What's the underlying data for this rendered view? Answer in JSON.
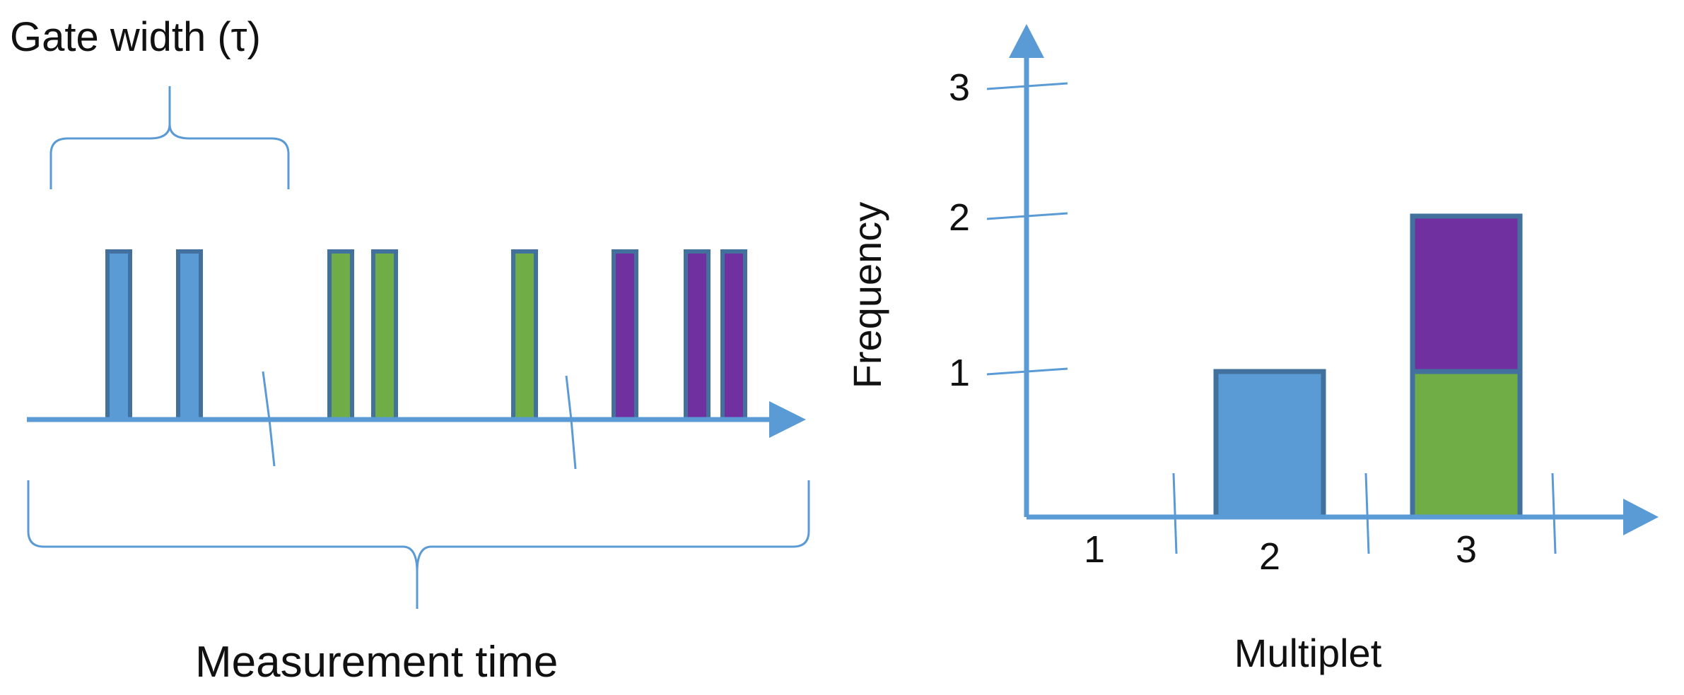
{
  "colors": {
    "axis": "#5b9bd5",
    "outline": "#41719c",
    "blue": "#5b9bd5",
    "green": "#70ad47",
    "purple": "#7030a0",
    "text": "#111111"
  },
  "timeline": {
    "gate_label": "Gate width (τ)",
    "measurement_label": "Measurement time",
    "pulses": [
      {
        "color": "blue"
      },
      {
        "color": "blue"
      },
      {
        "color": "green"
      },
      {
        "color": "green"
      },
      {
        "color": "green"
      },
      {
        "color": "purple"
      },
      {
        "color": "purple"
      },
      {
        "color": "purple"
      }
    ]
  },
  "chart_data": {
    "type": "bar",
    "stacked": true,
    "xlabel": "Multiplet",
    "ylabel": "Frequency",
    "categories": [
      "1",
      "2",
      "3"
    ],
    "yticks": [
      "1",
      "2",
      "3"
    ],
    "ylim": [
      0,
      3
    ],
    "series": [
      {
        "color": "blue",
        "values": [
          0,
          1,
          0
        ]
      },
      {
        "color": "green",
        "values": [
          0,
          0,
          1
        ]
      },
      {
        "color": "purple",
        "values": [
          0,
          0,
          1
        ]
      }
    ]
  }
}
